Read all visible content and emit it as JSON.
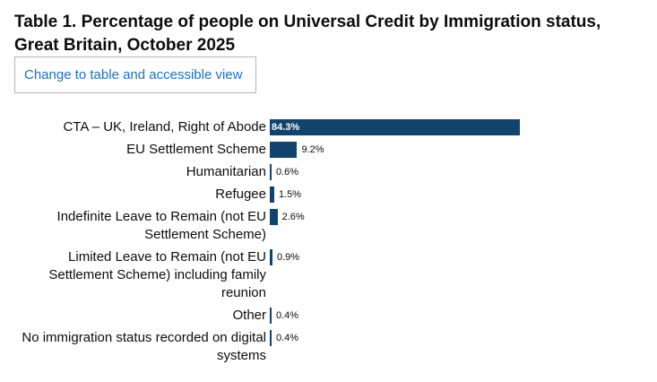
{
  "title": "Table 1. Percentage of people on Universal Credit by Immigration status, Great Britain, October 2025",
  "toggle_label": "Change to table and accessible view",
  "colors": {
    "bar": "#12436d",
    "link": "#1d70b8"
  },
  "chart_data": {
    "type": "bar",
    "orientation": "horizontal",
    "title": "Table 1. Percentage of people on Universal Credit by Immigration status, Great Britain, October 2025",
    "categories": [
      "CTA – UK, Ireland, Right of Abode",
      "EU Settlement Scheme",
      "Humanitarian",
      "Refugee",
      "Indefinite Leave to Remain (not EU Settlement Scheme)",
      "Limited Leave to Remain (not EU Settlement Scheme) including family reunion",
      "Other",
      "No immigration status recorded on digital systems"
    ],
    "values": [
      84.3,
      9.2,
      0.6,
      1.5,
      2.6,
      0.9,
      0.4,
      0.4
    ],
    "value_labels": [
      "84.3%",
      "9.2%",
      "0.6%",
      "1.5%",
      "2.6%",
      "0.9%",
      "0.4%",
      "0.4%"
    ],
    "xlim": [
      0,
      84.3
    ],
    "grid": false,
    "legend": "none"
  }
}
